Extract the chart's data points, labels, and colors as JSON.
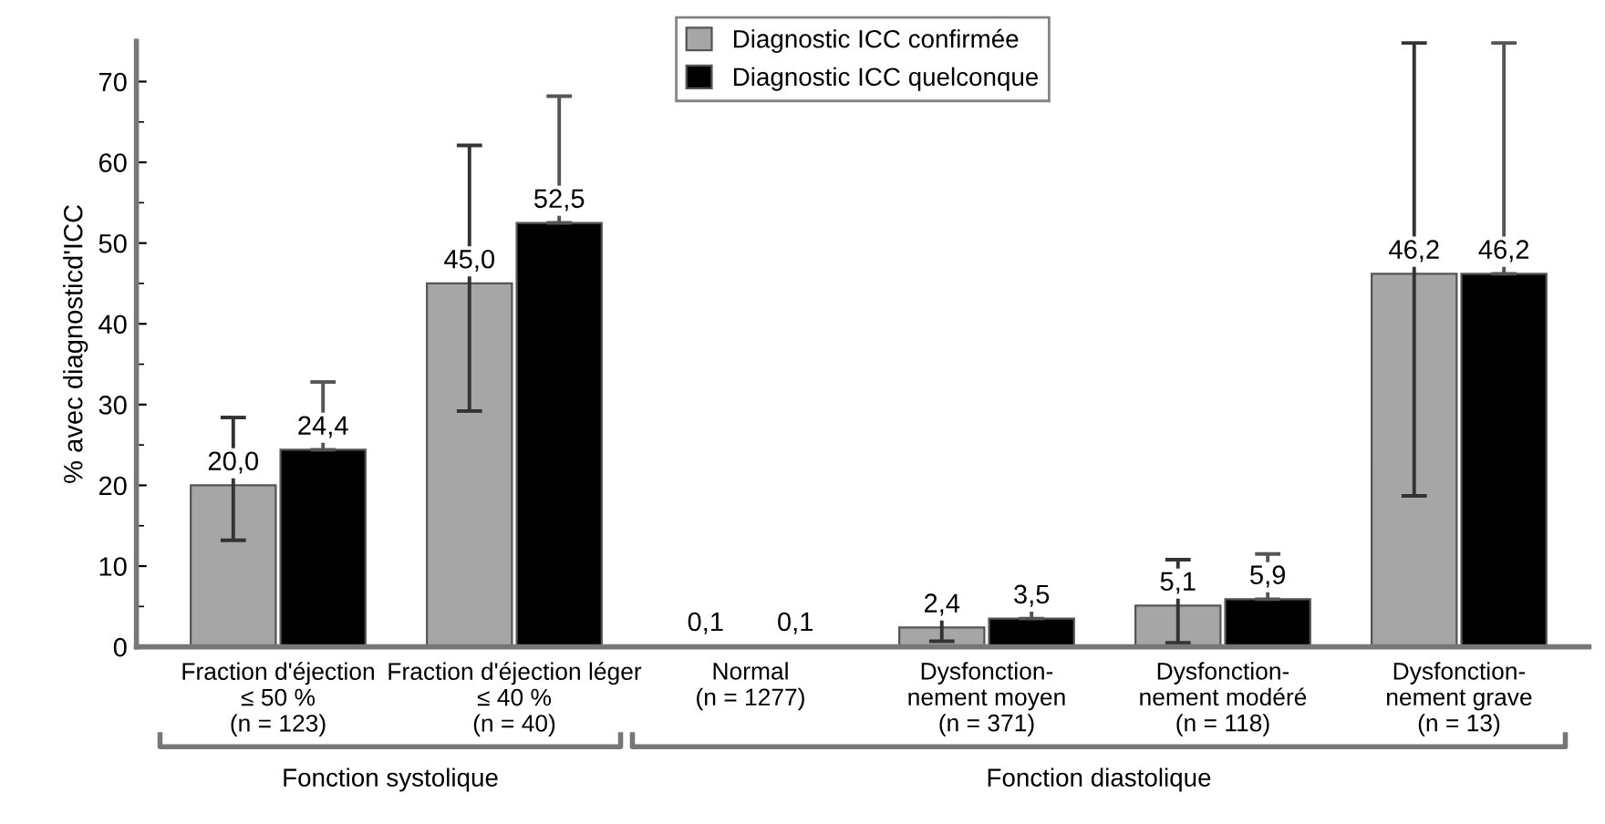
{
  "chart_data": {
    "type": "bar",
    "ylabel": "% avec diagnosticd'ICC",
    "categories": [
      "Fraction d'éjection\n≤ 50 %\n(n = 123)",
      "Fraction d'éjection léger\n≤ 40 %\n(n = 40)",
      "Normal\n(n = 1277)",
      "Dysfonction-\nnement moyen\n(n = 371)",
      "Dysfonction-\nnement modéré\n(n = 118)",
      "Dysfonction-\nnement grave\n(n = 13)"
    ],
    "series": [
      {
        "name": "Diagnostic ICC confirmée",
        "color": "#a6a6a6",
        "values": [
          20.0,
          45.0,
          0.1,
          2.4,
          5.1,
          46.2
        ],
        "value_labels": [
          "20,0",
          "45,0",
          "0,1",
          "2,4",
          "5,1",
          "46,2"
        ],
        "errors": [
          [
            13.2,
            28.4
          ],
          [
            29.2,
            62.1
          ],
          null,
          [
            0.7,
            4.2
          ],
          [
            0.5,
            10.8
          ],
          [
            18.7,
            74.8
          ]
        ]
      },
      {
        "name": "Diagnostic ICC quelconque",
        "color": "#000000",
        "values": [
          24.4,
          52.5,
          0.1,
          3.5,
          5.9,
          46.2
        ],
        "value_labels": [
          "24,4",
          "52,5",
          "0,1",
          "3,5",
          "5,9",
          "46,2"
        ],
        "errors": [
          [
            24.4,
            32.8
          ],
          [
            52.5,
            68.2
          ],
          null,
          [
            3.5,
            5.3
          ],
          [
            5.9,
            11.5
          ],
          [
            46.2,
            74.8
          ]
        ]
      }
    ],
    "ylim": [
      0,
      75
    ],
    "yticks": [
      0,
      10,
      20,
      30,
      40,
      50,
      60,
      70
    ],
    "grid": false,
    "legend": "top",
    "annotations": [
      "Fonction systolique",
      "Fonction diastolique"
    ]
  }
}
